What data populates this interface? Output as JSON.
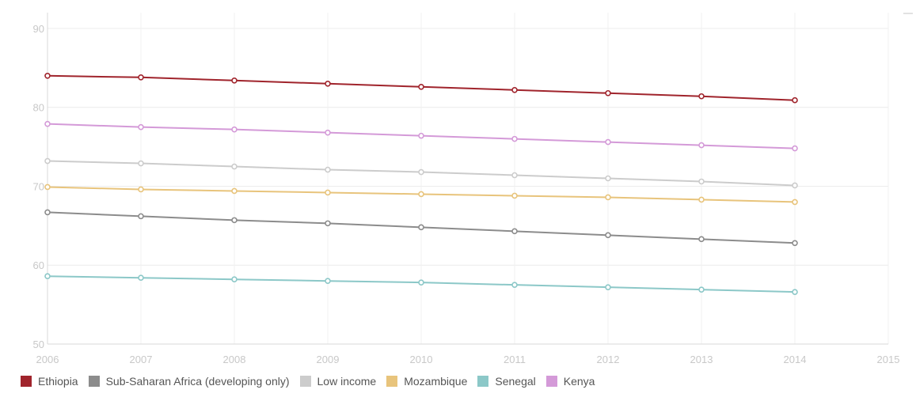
{
  "chart_data": {
    "type": "line",
    "title": "",
    "xlabel": "",
    "ylabel": "",
    "x": [
      2006,
      2007,
      2008,
      2009,
      2010,
      2011,
      2012,
      2013,
      2014
    ],
    "xlim": [
      2006,
      2015
    ],
    "ylim": [
      50,
      92
    ],
    "xticks": [
      "2006",
      "2007",
      "2008",
      "2009",
      "2010",
      "2011",
      "2012",
      "2013",
      "2014",
      "2015"
    ],
    "yticks": [
      "50",
      "60",
      "70",
      "80",
      "90"
    ],
    "grid": true,
    "legend_position": "bottom",
    "series": [
      {
        "name": "Ethiopia",
        "color": "#a0242c",
        "values": [
          84.0,
          83.8,
          83.4,
          83.0,
          82.6,
          82.2,
          81.8,
          81.4,
          80.9
        ]
      },
      {
        "name": "Sub-Saharan Africa (developing only)",
        "color": "#8c8c8c",
        "values": [
          66.7,
          66.2,
          65.7,
          65.3,
          64.8,
          64.3,
          63.8,
          63.3,
          62.8
        ]
      },
      {
        "name": "Low income",
        "color": "#cccccc",
        "values": [
          73.2,
          72.9,
          72.5,
          72.1,
          71.8,
          71.4,
          71.0,
          70.6,
          70.1
        ]
      },
      {
        "name": "Mozambique",
        "color": "#e8c47c",
        "values": [
          69.9,
          69.6,
          69.4,
          69.2,
          69.0,
          68.8,
          68.6,
          68.3,
          68.0
        ]
      },
      {
        "name": "Senegal",
        "color": "#8cc8c8",
        "values": [
          58.6,
          58.4,
          58.2,
          58.0,
          57.8,
          57.5,
          57.2,
          56.9,
          56.6
        ]
      },
      {
        "name": "Kenya",
        "color": "#d49ad8",
        "values": [
          77.9,
          77.5,
          77.2,
          76.8,
          76.4,
          76.0,
          75.6,
          75.2,
          74.8
        ]
      }
    ]
  }
}
